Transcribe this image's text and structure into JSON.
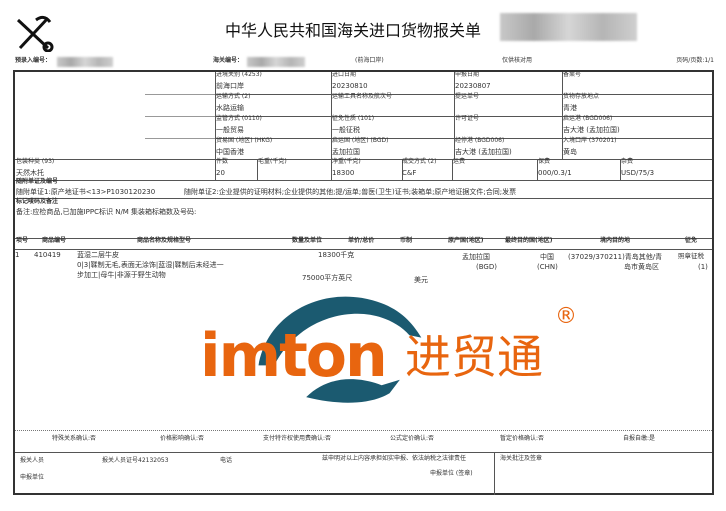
{
  "header": {
    "title": "中华人民共和国海关进口货物报关单",
    "pre_entry_label": "预录入编号：",
    "customs_no_label": "海关编号：",
    "port": "(前海口岸)",
    "note": "仅供核对用",
    "page": "页码/页数:1/1"
  },
  "fields": {
    "exit_customs": {
      "label": "进境关别 (4253)",
      "value": "前海口岸"
    },
    "import_date": {
      "label": "进口日期",
      "value": "20230810"
    },
    "declare_date": {
      "label": "申报日期",
      "value": "20230807"
    },
    "record_no": {
      "label": "备案号",
      "value": ""
    },
    "transport_mode": {
      "label": "运输方式 (2)",
      "value": "水路运输"
    },
    "vessel": {
      "label": "运输工具名称及航次号",
      "value": ""
    },
    "bill_no": {
      "label": "提运单号",
      "value": ""
    },
    "storage": {
      "label": "货物存放地点",
      "value": "青港"
    },
    "supervision": {
      "label": "监管方式 (0110)",
      "value": "一般贸易"
    },
    "tax_nature": {
      "label": "征免性质 (101)",
      "value": "一般征税"
    },
    "license": {
      "label": "许可证号",
      "value": ""
    },
    "departure_port": {
      "label": "启运港 (BGD006)",
      "value": "吉大港 (孟加拉国)"
    },
    "trade_country": {
      "label": "贸易国 (地区) (HKG)",
      "value": "中国香港"
    },
    "origin_country": {
      "label": "启运国 (地区) (BGD)",
      "value": "孟加拉国"
    },
    "transit_port": {
      "label": "经停港 (BGD006)",
      "value": "吉大港 (孟加拉国)"
    },
    "entry_port": {
      "label": "入境口岸 (370201)",
      "value": "黄岛"
    },
    "package": {
      "label": "包装种类 (93)",
      "value": "天然木托"
    },
    "pieces": {
      "label": "件数",
      "value": "20"
    },
    "gross": {
      "label": "毛重(千克)",
      "value": ""
    },
    "net": {
      "label": "净重(千克)",
      "value": "18300"
    },
    "deal": {
      "label": "成交方式 (2)",
      "value": "C&F"
    },
    "freight": {
      "label": "运费",
      "value": ""
    },
    "insurance": {
      "label": "保费",
      "value": "000/0.3/1"
    },
    "misc": {
      "label": "杂费",
      "value": "USD/75/3"
    }
  },
  "documents": {
    "label": "随附单证及编号",
    "line1": "随附单证1:原产地证书<13>P1030120230",
    "line2": "随附单证2:企业提供的证明材料;企业提供的其他;提/运单;兽医(卫生)证书;装箱单;原产地证据文件;合同;发票"
  },
  "marks": {
    "label": "标记唛码及备注",
    "value": "备注:应检商品,已加施IPPC标识 N/M   集装箱标箱数及号码:"
  },
  "items": {
    "headers": [
      "项号",
      "商品编号",
      "商品名称及规格型号",
      "数量及单位",
      "单价/总价",
      "币制",
      "原产国(地区)",
      "最终目的国(地区)",
      "境内目的地",
      "征免"
    ],
    "rows": [
      {
        "no": "1",
        "code": "410419",
        "name": "蓝湿二层牛皮",
        "spec1": "0|3|鞣制无毛,表面无涂饰|蓝湿|鞣制后未经进一",
        "spec2": "步加工|母牛|非源于野生动物",
        "qty1": "18300千克",
        "qty2": "75000平方英尺",
        "currency": "美元",
        "origin": "孟加拉国",
        "origin_code": "(BGD)",
        "dest": "中国",
        "dest_code": "(CHN)",
        "domestic1": "(37029/370211)青岛其他/青",
        "domestic2": "岛市黄岛区",
        "duty1": "照章征税",
        "duty2": "(1)"
      }
    ]
  },
  "confirm": [
    "特殊关系确认:否",
    "价格影响确认:否",
    "支付特许权使用费确认:否",
    "公式定价确认:否",
    "暂定价格确认:否",
    "自报自缴:是"
  ],
  "footer": {
    "declarant": "报关人员",
    "declarant_cert": "报关人员证号42132053",
    "phone": "电话",
    "declare_unit": "申报单位",
    "statement": "兹申明对以上内容承担如实申报、依法纳税之法律责任",
    "seal": "申报单位 (签章)",
    "customs_remark": "海关批注及签章"
  },
  "watermark": {
    "text": "imton",
    "cn": "进贸通",
    "reg": "®",
    "orange": "#E8650F",
    "teal": "#1B5A70"
  }
}
